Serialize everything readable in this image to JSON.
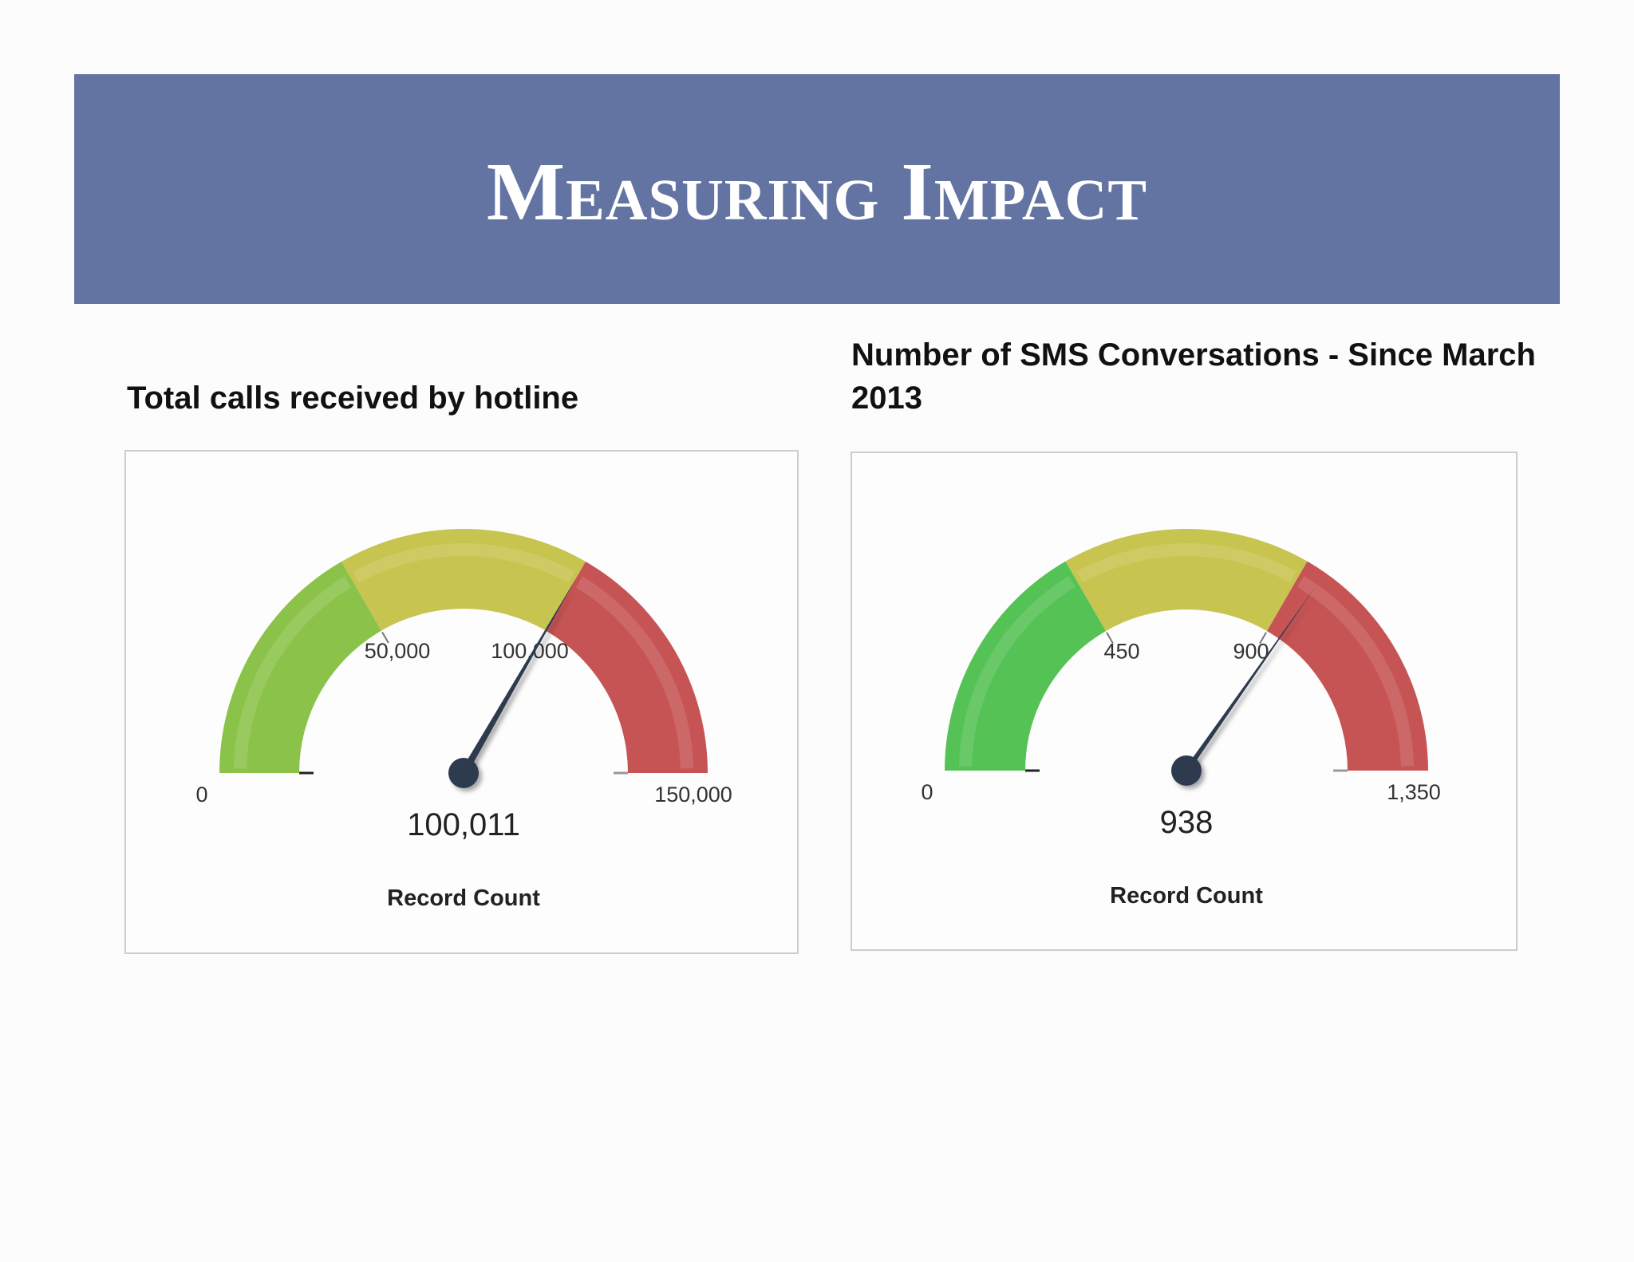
{
  "banner": {
    "title": "Measuring Impact"
  },
  "chart_data": [
    {
      "type": "gauge",
      "title": "Total calls received by hotline",
      "min": 0,
      "max": 150000,
      "value": 100011,
      "value_label": "100,011",
      "caption": "Record Count",
      "ticks": [
        {
          "value": 0,
          "label": "0"
        },
        {
          "value": 50000,
          "label": "50,000"
        },
        {
          "value": 100000,
          "label": "100,000"
        },
        {
          "value": 150000,
          "label": "150,000"
        }
      ],
      "bands": [
        {
          "from": 0,
          "to": 50000,
          "color": "#8bc34a"
        },
        {
          "from": 50000,
          "to": 100000,
          "color": "#c8c450"
        },
        {
          "from": 100000,
          "to": 150000,
          "color": "#c75454"
        }
      ]
    },
    {
      "type": "gauge",
      "title": "Number of SMS Conversations - Since March 2013",
      "min": 0,
      "max": 1350,
      "value": 938,
      "value_label": "938",
      "caption": "Record Count",
      "ticks": [
        {
          "value": 0,
          "label": "0"
        },
        {
          "value": 450,
          "label": "450"
        },
        {
          "value": 900,
          "label": "900"
        },
        {
          "value": 1350,
          "label": "1,350"
        }
      ],
      "bands": [
        {
          "from": 0,
          "to": 450,
          "color": "#55c255"
        },
        {
          "from": 450,
          "to": 900,
          "color": "#c8c450"
        },
        {
          "from": 900,
          "to": 1350,
          "color": "#c75454"
        }
      ]
    }
  ]
}
